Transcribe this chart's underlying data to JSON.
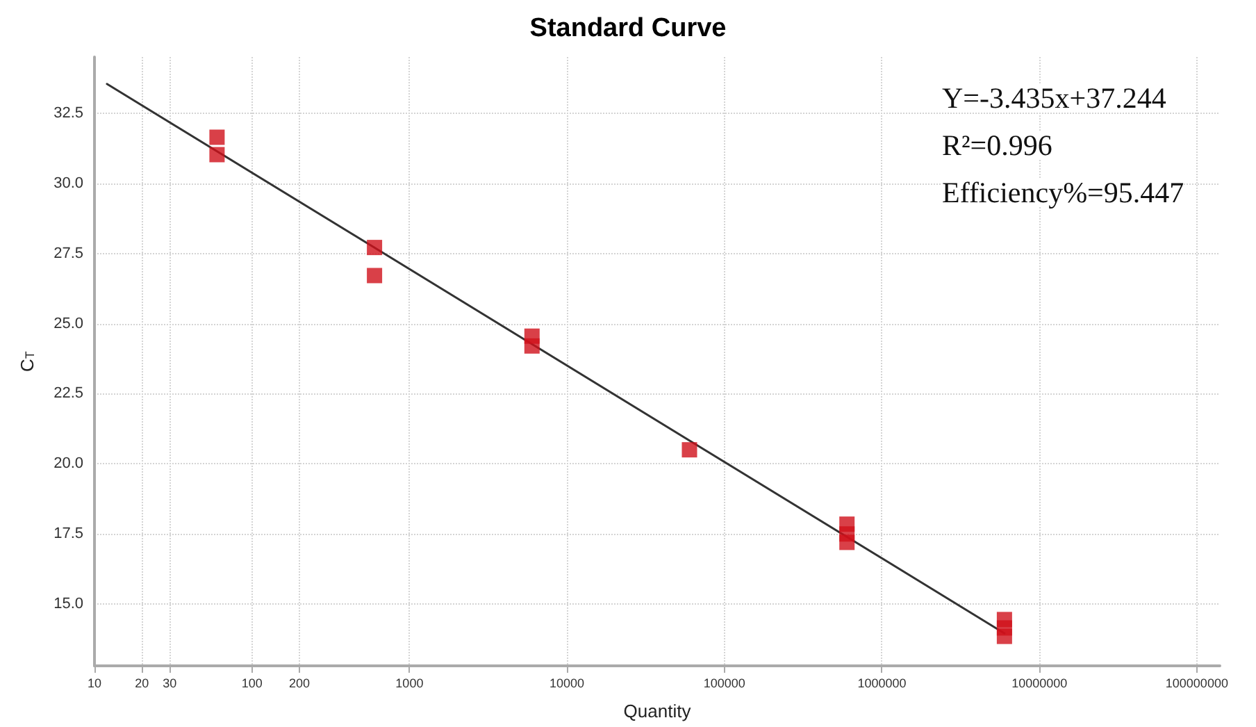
{
  "chart_data": {
    "type": "scatter",
    "title": "Standard Curve",
    "xlabel": "Quantity",
    "ylabel": "C$_{T}$",
    "log": "x",
    "grid": true,
    "xlim": [
      10,
      140000000
    ],
    "xticks": [
      10,
      20,
      30,
      100,
      200,
      1000,
      10000,
      100000,
      1000000,
      10000000,
      100000000
    ],
    "ylim": [
      12.8,
      34.5
    ],
    "yticks": [
      {
        "value": 15,
        "label": "15.0"
      },
      {
        "value": 17.5,
        "label": "17.5"
      },
      {
        "value": 20,
        "label": "20.0"
      },
      {
        "value": 22.5,
        "label": "22.5"
      },
      {
        "value": 25,
        "label": "25.0"
      },
      {
        "value": 27.5,
        "label": "27.5"
      },
      {
        "value": 30,
        "label": "30.0"
      },
      {
        "value": 32.5,
        "label": "32.5"
      }
    ],
    "annotations": [
      "Y=-3.435x+37.244",
      "R²=0.996",
      "Efficiency%=95.447"
    ],
    "series": [
      {
        "type": "line",
        "color": "#333333",
        "x": [
          12,
          6000000
        ],
        "values": [
          33.54,
          13.96
        ]
      },
      {
        "marker": "square",
        "color": "#d0101a",
        "x": [
          60,
          60,
          600,
          600,
          6000,
          6000,
          60000,
          600000,
          600000,
          600000,
          6000000,
          6000000,
          6000000
        ],
        "values": [
          31.64,
          31.02,
          27.71,
          26.71,
          24.55,
          24.2,
          20.5,
          17.85,
          17.5,
          17.2,
          14.45,
          14.15,
          13.85
        ]
      }
    ]
  }
}
